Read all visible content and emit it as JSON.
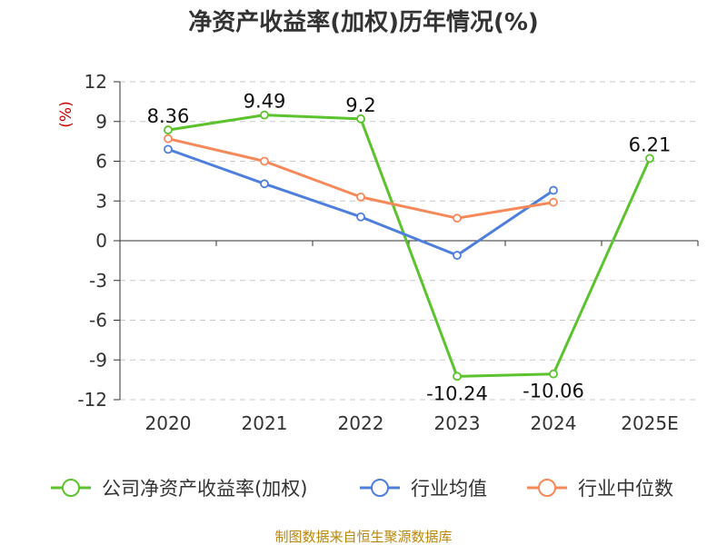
{
  "chart_data": {
    "type": "line",
    "title": "净资产收益率(加权)历年情况(%)",
    "ylabel": "(%)",
    "categories": [
      "2020",
      "2021",
      "2022",
      "2023",
      "2024",
      "2025E"
    ],
    "ylim": [
      -12,
      12
    ],
    "yticks": [
      12,
      9,
      6,
      3,
      0,
      -3,
      -6,
      -9,
      -12
    ],
    "grid": true,
    "legend_position": "bottom",
    "series": [
      {
        "name": "公司净资产收益率(加权)",
        "color": "#5cc22e",
        "values": [
          8.36,
          9.49,
          9.2,
          -10.24,
          -10.06,
          6.21
        ],
        "labels": [
          "8.36",
          "9.49",
          "9.2",
          "-10.24",
          "-10.06",
          "6.21"
        ],
        "show_labels": true
      },
      {
        "name": "行业均值",
        "color": "#4f7fdc",
        "values": [
          6.9,
          4.3,
          1.8,
          -1.1,
          3.8,
          null
        ],
        "show_labels": false
      },
      {
        "name": "行业中位数",
        "color": "#f5895a",
        "values": [
          7.7,
          6.0,
          3.3,
          1.7,
          2.9,
          null
        ],
        "show_labels": false
      }
    ]
  },
  "source": "制图数据来自恒生聚源数据库"
}
